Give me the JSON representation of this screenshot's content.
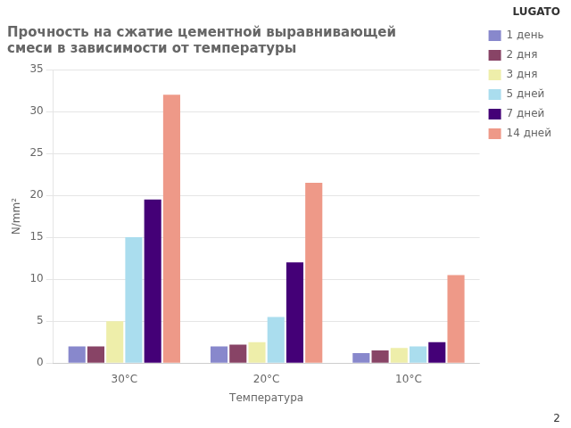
{
  "chart_data": {
    "type": "bar",
    "title": [
      "Прочность на сжатие цементной выравнивающей",
      "смеси в зависимости от температуры"
    ],
    "xlabel": "Температура",
    "ylabel": "N/mm²",
    "categories": [
      "30°C",
      "20°C",
      "10°C"
    ],
    "series": [
      {
        "name": "1 день",
        "color": "#8888CC",
        "values": [
          2.0,
          2.0,
          1.2
        ]
      },
      {
        "name": "2 дня",
        "color": "#884466",
        "values": [
          2.0,
          2.2,
          1.5
        ]
      },
      {
        "name": "3 дня",
        "color": "#EEEEAA",
        "values": [
          5.0,
          2.5,
          1.8
        ]
      },
      {
        "name": "5 дней",
        "color": "#AADDEE",
        "values": [
          15.0,
          5.5,
          2.0
        ]
      },
      {
        "name": "7 дней",
        "color": "#440077",
        "values": [
          19.5,
          12.0,
          2.5
        ]
      },
      {
        "name": "14 дней",
        "color": "#EE9988",
        "values": [
          32.0,
          21.5,
          10.5
        ]
      }
    ],
    "ylim": [
      0,
      35
    ],
    "yticks": [
      0,
      5,
      10,
      15,
      20,
      25,
      30,
      35
    ],
    "grid": true,
    "legend": "right",
    "annotations": [
      "LUGATO",
      "2"
    ]
  }
}
